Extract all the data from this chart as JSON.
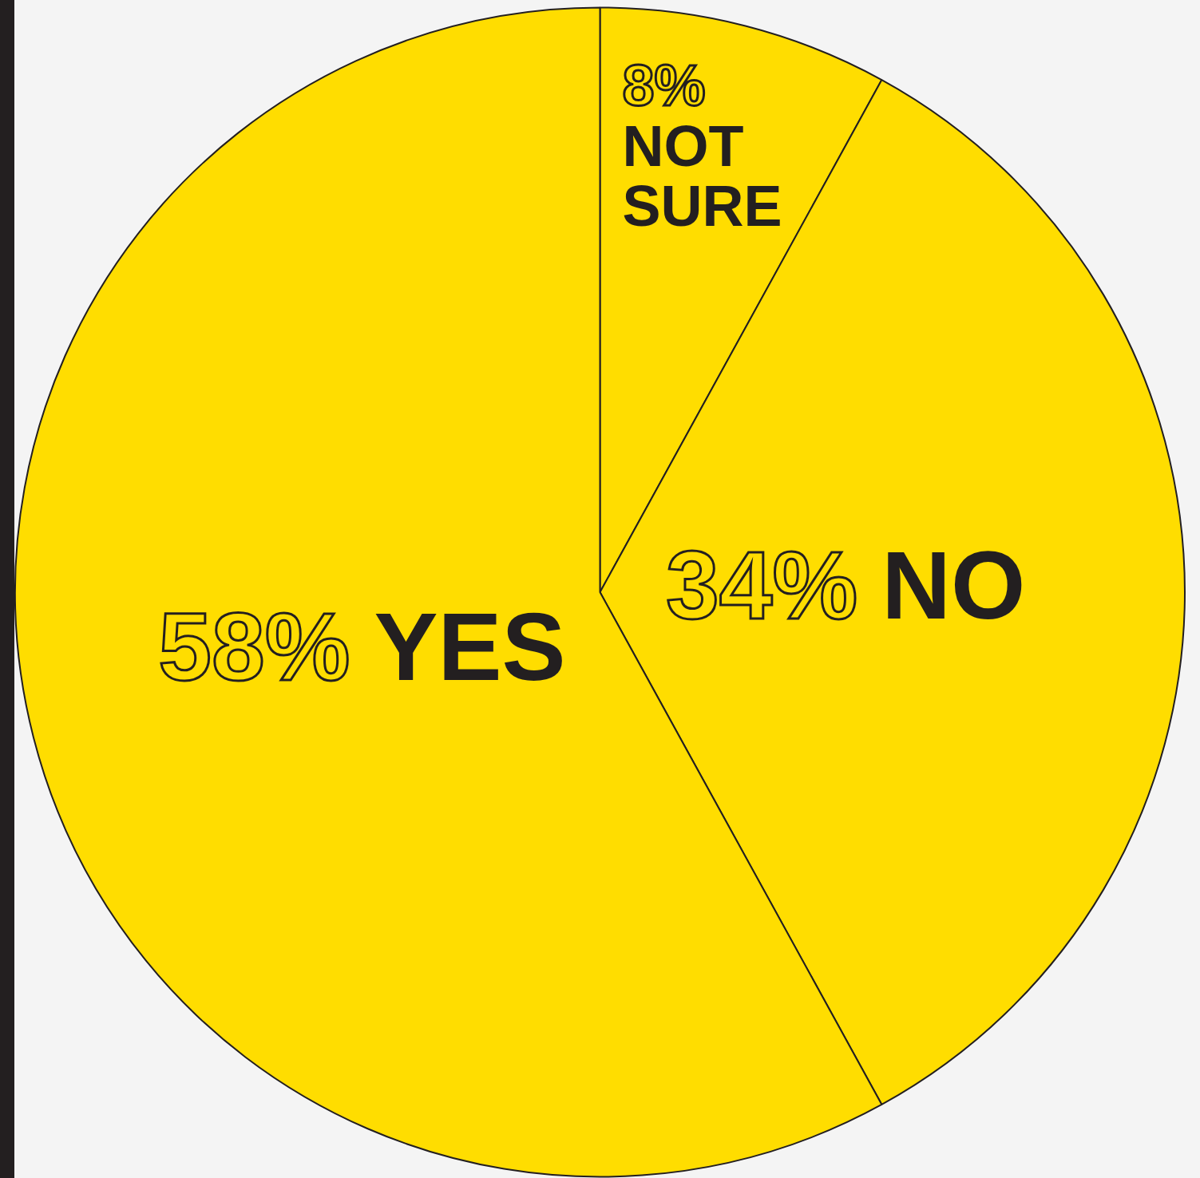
{
  "chart_data": {
    "type": "pie",
    "categories": [
      "NOT SURE",
      "NO",
      "YES"
    ],
    "values": [
      8,
      34,
      58
    ],
    "value_labels": [
      "8%",
      "34%",
      "58%"
    ],
    "colors": [
      "#ffdd00",
      "#ffdd00",
      "#ffdd00"
    ],
    "legend": false
  }
}
